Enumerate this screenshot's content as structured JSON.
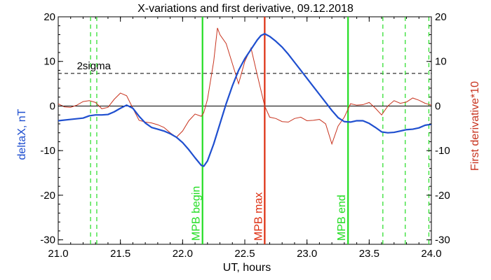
{
  "chart_data": {
    "type": "line",
    "title": "X-variations and first derivative, 09.12.2018",
    "xlabel": "UT, hours",
    "ylabel_left": "deltaX, nT",
    "ylabel_right": "First derivative*10",
    "xlim": [
      21.0,
      24.0
    ],
    "ylim": [
      -31,
      20
    ],
    "xticks": [
      "21.0",
      "21.5",
      "22.0",
      "22.5",
      "23.0",
      "23.5",
      "24.0"
    ],
    "xtick_values": [
      21.0,
      21.5,
      22.0,
      22.5,
      23.0,
      23.5,
      24.0
    ],
    "yticks": [
      "20",
      "10",
      "0",
      "-10",
      "-20",
      "-30"
    ],
    "ytick_values": [
      20,
      10,
      0,
      -10,
      -20,
      -30
    ],
    "grid": false,
    "colors": {
      "deltaX": "#1f4fcf",
      "derivative": "#c8341f",
      "markers_green": "#22dd22",
      "marker_max": "#dd2e10",
      "axis": "#000000",
      "left_label": "#1f4fcf",
      "right_label": "#c8341f"
    },
    "sigma": {
      "label": "2sigma",
      "value": 7.3
    },
    "zero_line": 0,
    "markers": [
      {
        "label": "MPB begin",
        "x": 22.16,
        "color": "#22dd22"
      },
      {
        "label": "MPB max",
        "x": 22.66,
        "color": "#dd2e10"
      },
      {
        "label": "MPB end",
        "x": 23.33,
        "color": "#22dd22"
      }
    ],
    "dashed_markers": [
      21.26,
      21.31,
      23.61,
      23.79,
      23.98
    ],
    "series": [
      {
        "key": "deltaX",
        "x": [
          21.0,
          21.1,
          21.2,
          21.25,
          21.3,
          21.35,
          21.4,
          21.45,
          21.5,
          21.55,
          21.6,
          21.65,
          21.7,
          21.75,
          21.8,
          21.85,
          21.9,
          21.95,
          22.0,
          22.05,
          22.1,
          22.15,
          22.17,
          22.2,
          22.25,
          22.3,
          22.35,
          22.4,
          22.45,
          22.5,
          22.55,
          22.6,
          22.63,
          22.66,
          22.7,
          22.75,
          22.8,
          22.85,
          22.9,
          22.95,
          23.0,
          23.05,
          23.1,
          23.15,
          23.2,
          23.25,
          23.3,
          23.35,
          23.4,
          23.45,
          23.5,
          23.55,
          23.6,
          23.65,
          23.7,
          23.75,
          23.8,
          23.85,
          23.9,
          23.95,
          24.0
        ],
        "y": [
          -3.3,
          -3.0,
          -2.7,
          -2.2,
          -2.0,
          -2.0,
          -1.9,
          -1.3,
          -0.5,
          0.2,
          -0.5,
          -2.3,
          -3.8,
          -4.8,
          -5.2,
          -5.6,
          -6.2,
          -7.0,
          -8.2,
          -9.8,
          -11.6,
          -13.3,
          -13.5,
          -12.3,
          -8.5,
          -4.0,
          0.5,
          4.5,
          8.0,
          10.6,
          12.7,
          14.8,
          15.8,
          16.2,
          15.6,
          14.5,
          13.2,
          11.6,
          9.8,
          8.0,
          6.2,
          4.4,
          2.6,
          0.8,
          -1.0,
          -2.6,
          -3.5,
          -3.6,
          -3.3,
          -3.3,
          -3.9,
          -4.8,
          -5.8,
          -6.0,
          -5.9,
          -5.6,
          -5.3,
          -5.2,
          -4.9,
          -4.3,
          -4.1
        ]
      },
      {
        "key": "derivative",
        "x": [
          21.0,
          21.05,
          21.1,
          21.15,
          21.2,
          21.25,
          21.3,
          21.35,
          21.4,
          21.45,
          21.5,
          21.55,
          21.6,
          21.65,
          21.7,
          21.75,
          21.8,
          21.85,
          21.9,
          21.95,
          22.0,
          22.05,
          22.1,
          22.15,
          22.17,
          22.2,
          22.25,
          22.28,
          22.3,
          22.35,
          22.4,
          22.45,
          22.5,
          22.55,
          22.6,
          22.63,
          22.66,
          22.7,
          22.75,
          22.8,
          22.85,
          22.9,
          22.95,
          23.0,
          23.05,
          23.1,
          23.15,
          23.2,
          23.25,
          23.3,
          23.35,
          23.4,
          23.45,
          23.5,
          23.55,
          23.6,
          23.65,
          23.7,
          23.75,
          23.8,
          23.85,
          23.9,
          23.95,
          24.0
        ],
        "y": [
          0.5,
          -0.2,
          -0.3,
          0.2,
          1.0,
          1.2,
          0.8,
          -0.6,
          -0.3,
          1.5,
          2.9,
          2.3,
          -0.5,
          -3.2,
          -3.6,
          -3.8,
          -4.2,
          -4.8,
          -6.0,
          -7.0,
          -5.6,
          -3.3,
          -1.8,
          -2.3,
          -1.5,
          1.5,
          10.0,
          17.5,
          16.0,
          14.0,
          9.5,
          5.0,
          10.0,
          13.0,
          7.0,
          3.5,
          0.0,
          -2.5,
          -2.8,
          -3.5,
          -3.6,
          -2.8,
          -2.5,
          -3.3,
          -3.2,
          -3.0,
          -4.0,
          -8.5,
          -4.5,
          -2.5,
          0.5,
          0.2,
          0.3,
          0.8,
          -0.5,
          -2.0,
          0.0,
          1.2,
          0.6,
          0.9,
          1.8,
          1.3,
          0.6,
          0.2
        ]
      }
    ]
  }
}
